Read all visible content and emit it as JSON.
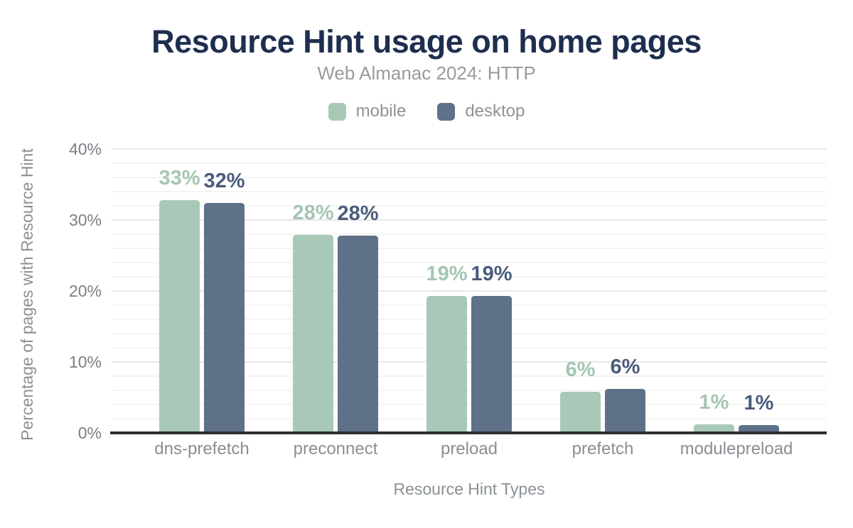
{
  "chart_data": {
    "type": "bar",
    "title": "Resource Hint usage on home pages",
    "subtitle": "Web Almanac 2024: HTTP",
    "xlabel": "Resource Hint Types",
    "ylabel": "Percentage of pages with Resource Hint",
    "categories": [
      "dns-prefetch",
      "preconnect",
      "preload",
      "prefetch",
      "modulepreload"
    ],
    "series": [
      {
        "name": "mobile",
        "color": "#a8c9b8",
        "label_color": "#a3c6b2",
        "values": [
          32.8,
          27.9,
          19.3,
          5.8,
          1.2
        ],
        "labels": [
          "33%",
          "28%",
          "19%",
          "6%",
          "1%"
        ]
      },
      {
        "name": "desktop",
        "color": "#5f7089",
        "label_color": "#4a5c7b",
        "values": [
          32.4,
          27.8,
          19.3,
          6.2,
          1.1
        ],
        "labels": [
          "32%",
          "28%",
          "19%",
          "6%",
          "1%"
        ]
      }
    ],
    "ylim": [
      0,
      40
    ],
    "ytick_interval": 10,
    "yminor_interval": 2,
    "ytick_labels": [
      "0%",
      "10%",
      "20%",
      "30%",
      "40%"
    ],
    "grid": "horizontal-only",
    "legend_position": "top-center"
  },
  "colors": {
    "title": "#1e2e4e",
    "subtitle": "#9a9a9a",
    "legend_text": "#8f9396",
    "tick_label": "#7b8085",
    "axis_title": "#8a9095",
    "category_label": "#898e93",
    "grid_major": "#e8e8e8",
    "grid_minor": "#f4f4f4",
    "axis_line": "#2e2e2e",
    "background": "#ffffff"
  }
}
